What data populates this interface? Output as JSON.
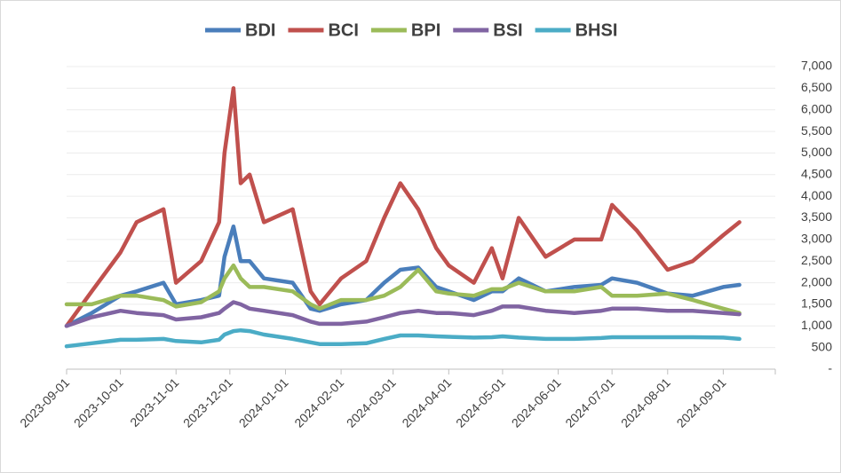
{
  "chart_data": {
    "type": "line",
    "x": [
      "2023-09-01",
      "2023-09-15",
      "2023-10-01",
      "2023-10-10",
      "2023-10-25",
      "2023-11-01",
      "2023-11-15",
      "2023-11-25",
      "2023-11-28",
      "2023-12-03",
      "2023-12-07",
      "2023-12-12",
      "2023-12-20",
      "2024-01-05",
      "2024-01-15",
      "2024-01-20",
      "2024-02-01",
      "2024-02-15",
      "2024-02-25",
      "2024-03-05",
      "2024-03-15",
      "2024-03-25",
      "2024-04-01",
      "2024-04-15",
      "2024-04-25",
      "2024-05-01",
      "2024-05-10",
      "2024-05-25",
      "2024-06-10",
      "2024-06-25",
      "2024-07-01",
      "2024-07-15",
      "2024-08-01",
      "2024-08-15",
      "2024-09-01",
      "2024-09-10"
    ],
    "series": [
      {
        "name": "BDI",
        "color": "#4a7ebb",
        "values": [
          1000,
          1300,
          1700,
          1800,
          2000,
          1500,
          1600,
          1700,
          2600,
          3300,
          2500,
          2500,
          2100,
          2000,
          1400,
          1350,
          1500,
          1600,
          2000,
          2300,
          2350,
          1900,
          1800,
          1600,
          1800,
          1800,
          2100,
          1800,
          1900,
          1950,
          2100,
          2000,
          1750,
          1700,
          1900,
          1950
        ]
      },
      {
        "name": "BCI",
        "color": "#c0504d",
        "values": [
          1000,
          1800,
          2700,
          3400,
          3700,
          2000,
          2500,
          3400,
          5000,
          6500,
          4300,
          4500,
          3400,
          3700,
          1800,
          1500,
          2100,
          2500,
          3500,
          4300,
          3700,
          2800,
          2400,
          2000,
          2800,
          2100,
          3500,
          2600,
          3000,
          3000,
          3800,
          3200,
          2300,
          2500,
          3100,
          3400
        ]
      },
      {
        "name": "BPI",
        "color": "#9bbb59",
        "values": [
          1500,
          1500,
          1700,
          1700,
          1600,
          1450,
          1550,
          1800,
          2100,
          2400,
          2100,
          1900,
          1900,
          1800,
          1500,
          1400,
          1600,
          1600,
          1700,
          1900,
          2300,
          1800,
          1750,
          1700,
          1850,
          1850,
          2000,
          1800,
          1800,
          1900,
          1700,
          1700,
          1750,
          1600,
          1400,
          1300
        ]
      },
      {
        "name": "BSI",
        "color": "#8064a2",
        "values": [
          1000,
          1200,
          1350,
          1300,
          1250,
          1150,
          1200,
          1300,
          1400,
          1550,
          1500,
          1400,
          1350,
          1250,
          1100,
          1050,
          1050,
          1100,
          1200,
          1300,
          1350,
          1300,
          1300,
          1250,
          1350,
          1450,
          1450,
          1350,
          1300,
          1350,
          1400,
          1400,
          1350,
          1350,
          1300,
          1270
        ]
      },
      {
        "name": "BHSI",
        "color": "#4bacc6",
        "values": [
          530,
          600,
          680,
          680,
          700,
          650,
          620,
          680,
          800,
          880,
          900,
          880,
          800,
          700,
          620,
          580,
          580,
          600,
          700,
          780,
          780,
          760,
          750,
          730,
          740,
          760,
          730,
          700,
          700,
          720,
          740,
          740,
          740,
          740,
          730,
          700
        ]
      }
    ],
    "xlim": [
      "2023-09-01",
      "2024-09-30"
    ],
    "xticks": [
      "2023-09-01",
      "2023-10-01",
      "2023-11-01",
      "2023-12-01",
      "2024-01-01",
      "2024-02-01",
      "2024-03-01",
      "2024-04-01",
      "2024-05-01",
      "2024-06-01",
      "2024-07-01",
      "2024-08-01",
      "2024-09-01"
    ],
    "ylim": [
      0,
      7000
    ],
    "yticks": [
      {
        "value": 0,
        "label": "-"
      },
      500,
      {
        "value": 1000,
        "label": "1,000"
      },
      {
        "value": 1500,
        "label": "1,500"
      },
      {
        "value": 2000,
        "label": "2,000"
      },
      {
        "value": 2500,
        "label": "2,500"
      },
      {
        "value": 3000,
        "label": "3,000"
      },
      {
        "value": 3500,
        "label": "3,500"
      },
      {
        "value": 4000,
        "label": "4,000"
      },
      {
        "value": 4500,
        "label": "4,500"
      },
      {
        "value": 5000,
        "label": "5,000"
      },
      {
        "value": 5500,
        "label": "5,500"
      },
      {
        "value": 6000,
        "label": "6,000"
      },
      {
        "value": 6500,
        "label": "6,500"
      },
      {
        "value": 7000,
        "label": "7,000"
      }
    ],
    "y_axis_side": "right",
    "grid": true,
    "legend": "top"
  }
}
